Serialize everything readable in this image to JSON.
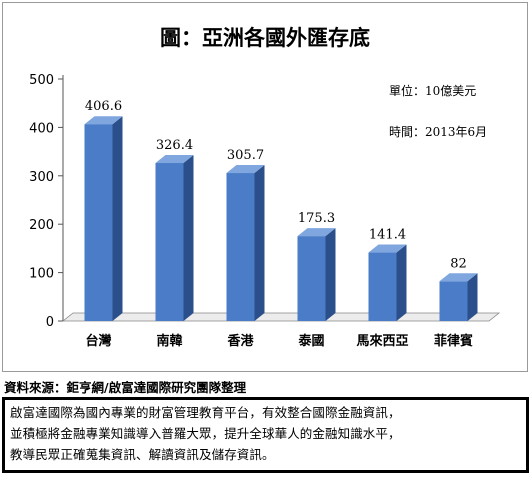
{
  "chart_data": {
    "type": "bar",
    "title": "圖：亞洲各國外匯存底",
    "unit_note": "單位：10億美元",
    "time_note": "時間：2013年6月",
    "categories": [
      "台灣",
      "南韓",
      "香港",
      "泰國",
      "馬來西亞",
      "菲律賓"
    ],
    "values": [
      406.6,
      326.4,
      305.7,
      175.3,
      141.4,
      82
    ],
    "value_labels": [
      "406.6",
      "326.4",
      "305.7",
      "175.3",
      "141.4",
      "82"
    ],
    "ylim": [
      0,
      500
    ],
    "yticks": [
      0,
      100,
      200,
      300,
      400,
      500
    ],
    "ytick_labels": [
      "0",
      "100",
      "200",
      "300",
      "400",
      "500"
    ],
    "xlabel": "",
    "ylabel": "",
    "grid": false,
    "style": "3d-column",
    "colors": {
      "bar_front": "#4a7cc7",
      "bar_side": "#2a4f8a",
      "bar_top": "#7fa6df"
    }
  },
  "source": "資料來源：鉅亨網/啟富達國際研究團隊整理",
  "note": {
    "lines": [
      "啟富達國際為國內專業的財富管理教育平台，有效整合國際金融資訊，",
      "並積極將金融專業知識導入普羅大眾，提升全球華人的金融知識水平，",
      "教導民眾正確蒐集資訊、解讀資訊及儲存資訊。"
    ]
  }
}
